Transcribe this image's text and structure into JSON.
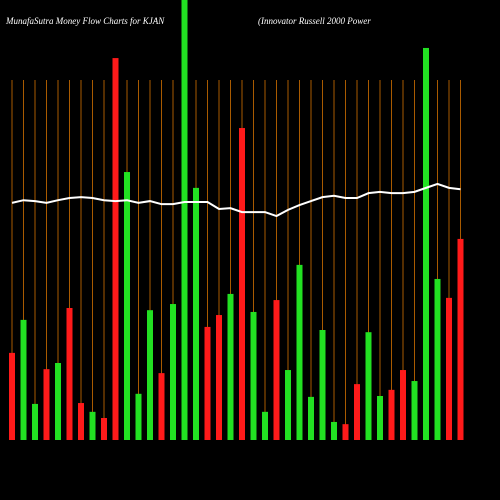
{
  "chart_data": {
    "type": "bar",
    "title": "MunafaSutra  Money Flow  Charts for KJAN",
    "subtitle": "(Innovator Russell 2000  Power",
    "values": [
      19.8,
      27.3,
      8.2,
      16.1,
      17.5,
      30,
      8.4,
      6.4,
      5,
      86.8,
      60.9,
      10.5,
      29.5,
      15.2,
      30.9,
      100,
      57.3,
      25.7,
      28.4,
      33.2,
      70.9,
      29.1,
      6.4,
      31.8,
      15.9,
      39.8,
      9.8,
      25,
      4.1,
      3.6,
      12.7,
      24.5,
      10,
      11.4,
      15.9,
      13.4,
      89.1,
      36.6,
      32.3,
      45.7
    ],
    "colors": [
      "#ff1a1a",
      "#22e022",
      "#22e022",
      "#ff1a1a",
      "#22e022",
      "#ff1a1a",
      "#ff1a1a",
      "#22e022",
      "#ff1a1a",
      "#ff1a1a",
      "#22e022",
      "#22e022",
      "#22e022",
      "#ff1a1a",
      "#22e022",
      "#22e022",
      "#22e022",
      "#ff1a1a",
      "#ff1a1a",
      "#22e022",
      "#ff1a1a",
      "#22e022",
      "#22e022",
      "#ff1a1a",
      "#22e022",
      "#22e022",
      "#22e022",
      "#22e022",
      "#22e022",
      "#ff1a1a",
      "#ff1a1a",
      "#22e022",
      "#22e022",
      "#ff1a1a",
      "#ff1a1a",
      "#22e022",
      "#22e022",
      "#22e022",
      "#ff1a1a",
      "#ff1a1a"
    ],
    "line": {
      "color": "#ffffff",
      "values": [
        53.9,
        54.5,
        54.3,
        53.9,
        54.5,
        55,
        55.2,
        55,
        54.5,
        54.3,
        54.5,
        53.9,
        54.3,
        53.6,
        53.6,
        54.1,
        54.1,
        54.1,
        52.5,
        52.7,
        51.8,
        51.8,
        51.8,
        50.9,
        52.3,
        53.4,
        54.3,
        55.2,
        55.5,
        55,
        55,
        56.1,
        56.4,
        56.1,
        56.1,
        56.4,
        57.3,
        58.2,
        57.3,
        57
      ]
    },
    "ylim": [
      0,
      100
    ],
    "grid": true,
    "grid_color": "#a85a00"
  }
}
